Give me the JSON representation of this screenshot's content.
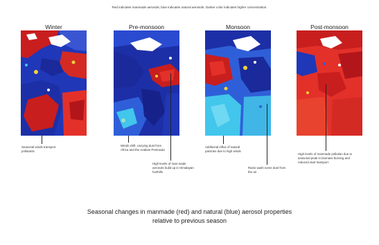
{
  "header": "Red indicates manmade aerosols; blue indicates natural aerosols. Darker color indicates higher concentration.",
  "panels": [
    {
      "title": "Winter",
      "annotations": [
        "Seasonal winds transport pollutants"
      ]
    },
    {
      "title": "Pre-monsoon",
      "annotations": [
        "Winds shift, carrying dust from Africa and the Arabian Peninsula",
        "High levels of man-made aerosols build up in Himalayan foothills"
      ]
    },
    {
      "title": "Monsoon",
      "annotations": [
        "Additional influx of natural particles due to high winds",
        "Rains wash some dust from the air"
      ]
    },
    {
      "title": "Post-monsoon",
      "annotations": [
        "High levels of manmade pollution due to seasonal peak in biomass burning and reduced dust transport"
      ]
    }
  ],
  "caption": {
    "line1": "Seasonal changes in manmade (red) and natural (blue) aerosol properties",
    "line2": "relative to previous season"
  },
  "colors": {
    "manmade_dark": "#c81e1e",
    "manmade": "#e3312a",
    "natural_dark": "#1d2fa6",
    "natural": "#2f5fd8",
    "natural_light": "#42c6ec",
    "no_data": "#ffffff"
  }
}
